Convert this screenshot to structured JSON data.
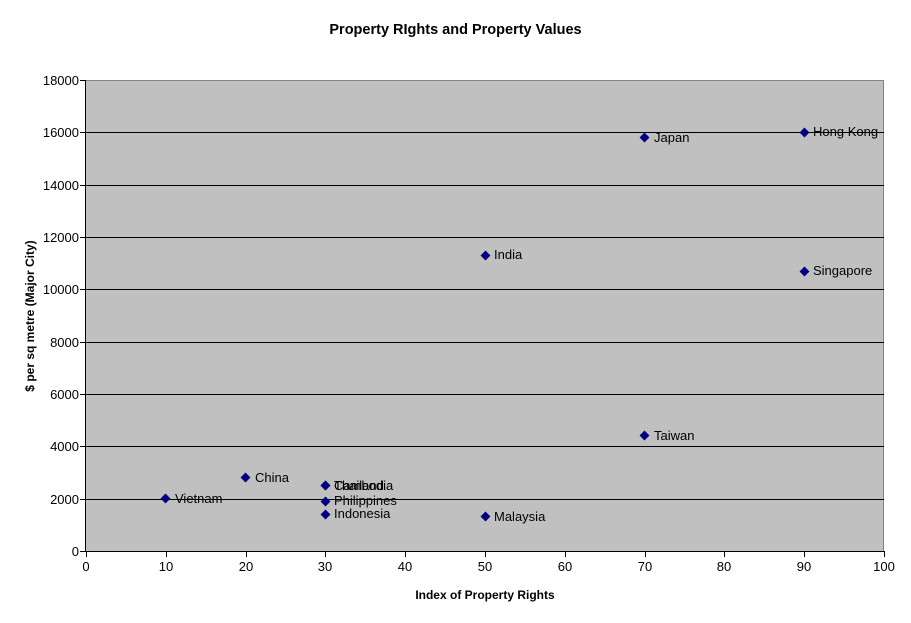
{
  "chart_data": {
    "type": "scatter",
    "title": "Property RIghts and Property Values",
    "xlabel": "Index of Property Rights",
    "ylabel": "$ per sq metre (Major City)",
    "xlim": [
      0,
      100
    ],
    "ylim": [
      0,
      18000
    ],
    "xticks": [
      0,
      10,
      20,
      30,
      40,
      50,
      60,
      70,
      80,
      90,
      100
    ],
    "yticks": [
      0,
      2000,
      4000,
      6000,
      8000,
      10000,
      12000,
      14000,
      16000,
      18000
    ],
    "grid": "horizontal",
    "legend": "none",
    "colors": {
      "page_bg": "#ffffff",
      "plot_bg": "#c0c0c0",
      "marker": "#000080",
      "gridline": "#000000",
      "axis": "#000000",
      "plot_border": "#848484",
      "text": "#000000"
    },
    "points": [
      {
        "label": "Vietnam",
        "x": 10,
        "y": 2000
      },
      {
        "label": "China",
        "x": 20,
        "y": 2800
      },
      {
        "label": "Thailand",
        "x": 30,
        "y": 2500
      },
      {
        "label": "Cambodia",
        "x": 30,
        "y": 2500
      },
      {
        "label": "Philippines",
        "x": 30,
        "y": 1900
      },
      {
        "label": "Indonesia",
        "x": 30,
        "y": 1400
      },
      {
        "label": "Malaysia",
        "x": 50,
        "y": 1300
      },
      {
        "label": "India",
        "x": 50,
        "y": 11300
      },
      {
        "label": "Taiwan",
        "x": 70,
        "y": 4400
      },
      {
        "label": "Japan",
        "x": 70,
        "y": 15800
      },
      {
        "label": "Singapore",
        "x": 90,
        "y": 10700
      },
      {
        "label": "Hong Kong",
        "x": 90,
        "y": 16000
      }
    ]
  }
}
